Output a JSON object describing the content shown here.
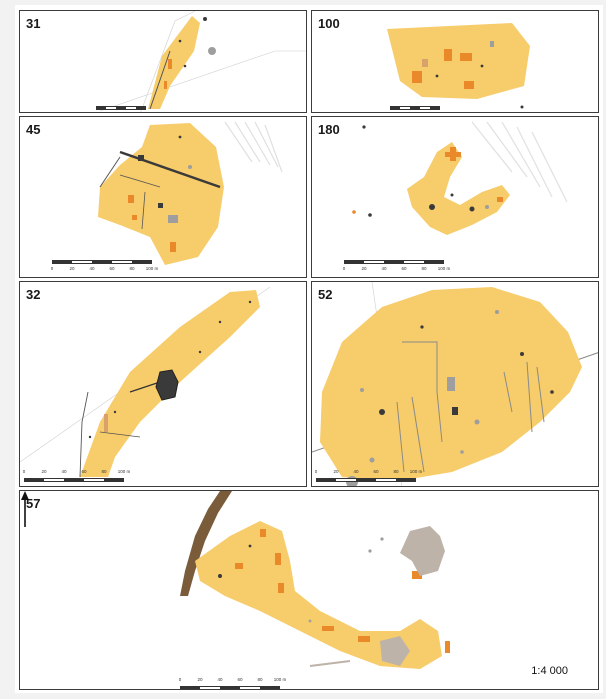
{
  "panels": [
    {
      "id": "31"
    },
    {
      "id": "100"
    },
    {
      "id": "45"
    },
    {
      "id": "180"
    },
    {
      "id": "32"
    },
    {
      "id": "52"
    },
    {
      "id": "57"
    }
  ],
  "scale_bar": {
    "ticks": [
      "0",
      "20",
      "40",
      "60",
      "80",
      "100 m"
    ]
  },
  "map_scale": "1:4 000",
  "colors": {
    "site_fill": "#f7cc6a",
    "orange_feature": "#e9892a",
    "grey_feature": "#9e9e9e",
    "dark_feature": "#3a3a3a",
    "river": "#7a5c3a",
    "frame": "#3c3c3c"
  }
}
